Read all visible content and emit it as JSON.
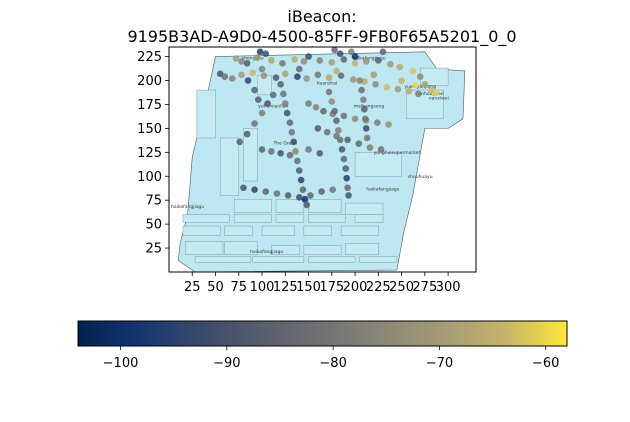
{
  "chart_data": {
    "type": "scatter",
    "title_line1": "iBeacon:",
    "title_line2": "9195B3AD-A9D0-4500-85FF-9FB0F65A5201_0_0",
    "xlabel": "",
    "ylabel": "",
    "xlim": [
      0,
      330
    ],
    "ylim": [
      0,
      235
    ],
    "xticks": [
      25,
      50,
      75,
      100,
      125,
      150,
      175,
      200,
      225,
      250,
      275,
      300
    ],
    "yticks": [
      25,
      50,
      75,
      100,
      125,
      150,
      175,
      200,
      225
    ],
    "colorbar": {
      "orientation": "horizontal",
      "colormap": "cividis",
      "min": -104,
      "max": -58,
      "ticks": [
        -100,
        -90,
        -80,
        -70,
        -60
      ]
    },
    "floorplan_color": "#bde8f2",
    "store_labels": [
      {
        "text": "haikafangjiagu",
        "x": 215,
        "y": 222
      },
      {
        "text": "shengzhu",
        "x": 90,
        "y": 222
      },
      {
        "text": "kuanzhai",
        "x": 170,
        "y": 196
      },
      {
        "text": "yueleyanjiang",
        "x": 270,
        "y": 192
      },
      {
        "text": "tianhouyuan",
        "x": 280,
        "y": 185
      },
      {
        "text": "nanxiwei",
        "x": 290,
        "y": 180
      },
      {
        "text": "yuhuinianlian",
        "x": 112,
        "y": 172
      },
      {
        "text": "meibangsong",
        "x": 215,
        "y": 172
      },
      {
        "text": "The Green",
        "x": 125,
        "y": 133
      },
      {
        "text": "yonghuisupermarket",
        "x": 245,
        "y": 123
      },
      {
        "text": "shouhuayu",
        "x": 270,
        "y": 98
      },
      {
        "text": "haikafangjiagu",
        "x": 230,
        "y": 85
      },
      {
        "text": "haikafangjiagu",
        "x": 20,
        "y": 67
      },
      {
        "text": "haikafangjiagu",
        "x": 105,
        "y": 20
      }
    ],
    "series": [
      {
        "points": [
          [
            72,
            223,
            -70
          ],
          [
            78,
            220,
            -75
          ],
          [
            84,
            218,
            -88
          ],
          [
            95,
            224,
            -72
          ],
          [
            110,
            221,
            -68
          ],
          [
            122,
            218,
            -80
          ],
          [
            135,
            222,
            -66
          ],
          [
            145,
            220,
            -74
          ],
          [
            150,
            225,
            -92
          ],
          [
            162,
            221,
            -77
          ],
          [
            175,
            219,
            -70
          ],
          [
            188,
            222,
            -85
          ],
          [
            200,
            218,
            -64
          ],
          [
            212,
            220,
            -72
          ],
          [
            225,
            221,
            -86
          ],
          [
            238,
            217,
            -70
          ],
          [
            248,
            214,
            -66
          ],
          [
            262,
            210,
            -62
          ],
          [
            270,
            204,
            -75
          ],
          [
            275,
            196,
            -68
          ],
          [
            282,
            190,
            -63
          ],
          [
            287,
            187,
            -61
          ],
          [
            55,
            207,
            -90
          ],
          [
            60,
            204,
            -82
          ],
          [
            68,
            202,
            -76
          ],
          [
            78,
            206,
            -70
          ],
          [
            90,
            208,
            -64
          ],
          [
            102,
            205,
            -73
          ],
          [
            115,
            203,
            -88
          ],
          [
            125,
            207,
            -69
          ],
          [
            138,
            204,
            -95
          ],
          [
            148,
            202,
            -72
          ],
          [
            160,
            206,
            -80
          ],
          [
            172,
            203,
            -67
          ],
          [
            185,
            205,
            -84
          ],
          [
            198,
            201,
            -71
          ],
          [
            210,
            199,
            -66
          ],
          [
            222,
            196,
            -75
          ],
          [
            234,
            193,
            -63
          ],
          [
            246,
            191,
            -70
          ],
          [
            258,
            189,
            -66
          ],
          [
            268,
            186,
            -77
          ],
          [
            120,
            196,
            -86
          ],
          [
            123,
            186,
            -82
          ],
          [
            125,
            176,
            -78
          ],
          [
            127,
            166,
            -90
          ],
          [
            130,
            156,
            -84
          ],
          [
            132,
            146,
            -80
          ],
          [
            134,
            136,
            -92
          ],
          [
            136,
            126,
            -76
          ],
          [
            138,
            116,
            -83
          ],
          [
            140,
            106,
            -88
          ],
          [
            142,
            96,
            -94
          ],
          [
            144,
            86,
            -85
          ],
          [
            146,
            76,
            -100
          ],
          [
            148,
            70,
            -89
          ],
          [
            112,
            185,
            -84
          ],
          [
            106,
            176,
            -90
          ],
          [
            100,
            166,
            -78
          ],
          [
            92,
            155,
            -82
          ],
          [
            84,
            144,
            -88
          ],
          [
            76,
            136,
            -86
          ],
          [
            150,
            176,
            -80
          ],
          [
            158,
            172,
            -76
          ],
          [
            166,
            168,
            -84
          ],
          [
            176,
            165,
            -78
          ],
          [
            188,
            163,
            -82
          ],
          [
            200,
            160,
            -74
          ],
          [
            212,
            158,
            -70
          ],
          [
            224,
            156,
            -78
          ],
          [
            236,
            154,
            -72
          ],
          [
            160,
            150,
            -88
          ],
          [
            170,
            146,
            -82
          ],
          [
            180,
            142,
            -80
          ],
          [
            192,
            138,
            -86
          ],
          [
            204,
            134,
            -84
          ],
          [
            216,
            130,
            -78
          ],
          [
            228,
            128,
            -82
          ],
          [
            172,
            188,
            -80
          ],
          [
            175,
            178,
            -74
          ],
          [
            178,
            168,
            -84
          ],
          [
            180,
            158,
            -86
          ],
          [
            182,
            148,
            -78
          ],
          [
            184,
            138,
            -82
          ],
          [
            186,
            128,
            -90
          ],
          [
            188,
            118,
            -85
          ],
          [
            190,
            108,
            -88
          ],
          [
            191,
            98,
            -96
          ],
          [
            192,
            88,
            -84
          ],
          [
            193,
            80,
            -90
          ],
          [
            205,
            200,
            -76
          ],
          [
            207,
            190,
            -82
          ],
          [
            209,
            180,
            -78
          ],
          [
            210,
            170,
            -86
          ],
          [
            211,
            160,
            -82
          ],
          [
            212,
            150,
            -92
          ],
          [
            213,
            140,
            -80
          ],
          [
            100,
            128,
            -86
          ],
          [
            110,
            126,
            -82
          ],
          [
            120,
            124,
            -90
          ],
          [
            130,
            122,
            -84
          ],
          [
            150,
            128,
            -80
          ],
          [
            162,
            124,
            -88
          ],
          [
            80,
            88,
            -90
          ],
          [
            92,
            86,
            -94
          ],
          [
            104,
            84,
            -86
          ],
          [
            116,
            82,
            -82
          ],
          [
            128,
            80,
            -88
          ],
          [
            140,
            78,
            -92
          ],
          [
            152,
            80,
            -84
          ],
          [
            164,
            84,
            -86
          ],
          [
            176,
            86,
            -80
          ],
          [
            85,
            200,
            -94
          ],
          [
            92,
            190,
            -86
          ],
          [
            96,
            180,
            -88
          ],
          [
            100,
            212,
            -76
          ],
          [
            140,
            212,
            -84
          ],
          [
            180,
            210,
            -66
          ],
          [
            220,
            206,
            -70
          ],
          [
            250,
            200,
            -64
          ],
          [
            265,
            195,
            -60
          ],
          [
            178,
            232,
            -84
          ],
          [
            184,
            228,
            -92
          ],
          [
            196,
            230,
            -78
          ],
          [
            230,
            230,
            -86
          ],
          [
            200,
            225,
            -100
          ],
          [
            98,
            230,
            -96
          ],
          [
            104,
            228,
            -92
          ]
        ]
      }
    ]
  }
}
